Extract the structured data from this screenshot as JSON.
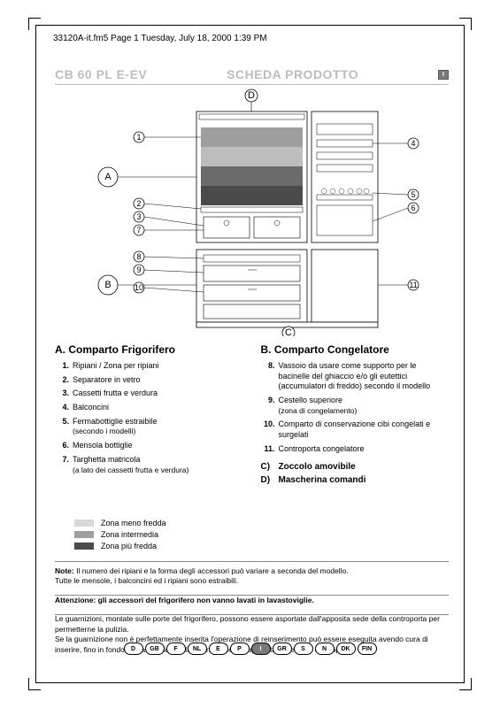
{
  "header_line": "33120A-it.fm5  Page 1  Tuesday, July 18, 2000  1:39 PM",
  "title_left": "CB 60 PL  E-EV",
  "title_right": "SCHEDA PRODOTTO",
  "lang_badge": "I",
  "diagram": {
    "big_labels": {
      "A": "A",
      "B": "B",
      "C": "C",
      "D": "D"
    },
    "callouts_left": [
      "1",
      "2",
      "3",
      "7",
      "8",
      "9",
      "10"
    ],
    "callouts_right": [
      "4",
      "5",
      "6",
      "11"
    ],
    "shelf_colors": [
      "#9e9e9e",
      "#bdbdbd",
      "#6b6b6b",
      "#4a4a4a"
    ],
    "body_stroke": "#000000",
    "line_color": "#000000"
  },
  "sectionA": {
    "heading": "A.    Comparto Frigorifero",
    "items": [
      {
        "n": "1.",
        "t": "Ripiani / Zona per ripiani"
      },
      {
        "n": "2.",
        "t": "Separatore in vetro"
      },
      {
        "n": "3.",
        "t": "Cassetti frutta e verdura"
      },
      {
        "n": "4.",
        "t": "Balconcini"
      },
      {
        "n": "5.",
        "t": "Fermabottiglie estraibile",
        "s": "(secondo i modelli)"
      },
      {
        "n": "6.",
        "t": "Mensola bottiglie"
      },
      {
        "n": "7.",
        "t": "Targhetta matricola",
        "s": "(a lato dei cassetti frutta e verdura)"
      }
    ]
  },
  "sectionB": {
    "heading": "B.    Comparto Congelatore",
    "items": [
      {
        "n": "8.",
        "t": "Vassoio da usare come supporto per le bacinelle del ghiaccio e/o gli eutettici (accumulatori di freddo) secondo il modello"
      },
      {
        "n": "9.",
        "t": "Cestello superiore",
        "s": "(zona di congelamento)"
      },
      {
        "n": "10.",
        "t": "Comparto di conservazione cibi congelati e surgelati"
      },
      {
        "n": "11.",
        "t": "Controporta congelatore"
      }
    ],
    "extra": [
      {
        "l": "C)",
        "t": "Zoccolo amovibile"
      },
      {
        "l": "D)",
        "t": "Mascherina comandi"
      }
    ]
  },
  "legend": [
    {
      "label": "Zona meno fredda",
      "color": "#d9d9d9"
    },
    {
      "label": "Zona intermedia",
      "color": "#9e9e9e"
    },
    {
      "label": "Zona più fredda",
      "color": "#4a4a4a"
    }
  ],
  "note1_b": "Note:",
  "note1": " Il numero dei ripiani e la forma degli accessori può variare a seconda del modello.",
  "note2": "Tutte le mensole, i balconcini ed i ripiani sono estraibili.",
  "attenzione_b": "Attenzione: gli accessori del frigorifero non vanno lavati in lavastoviglie.",
  "para": "Le guarnizioni, montate sulle porte del frigorifero, possono essere asportate dall'apposita sede della controporta per permetterne la pulizia.\nSe la guarnizione non è perfettamente inserita l'operazione di reinserimento può essere eseguita avendo cura di inserire, fino in fondo, la base rigida della guarnizione nell'apposita sede della controporta.",
  "langs": [
    "D",
    "GB",
    "F",
    "NL",
    "E",
    "P",
    "I",
    "GR",
    "S",
    "N",
    "DK",
    "FIN"
  ],
  "lang_active": "I"
}
